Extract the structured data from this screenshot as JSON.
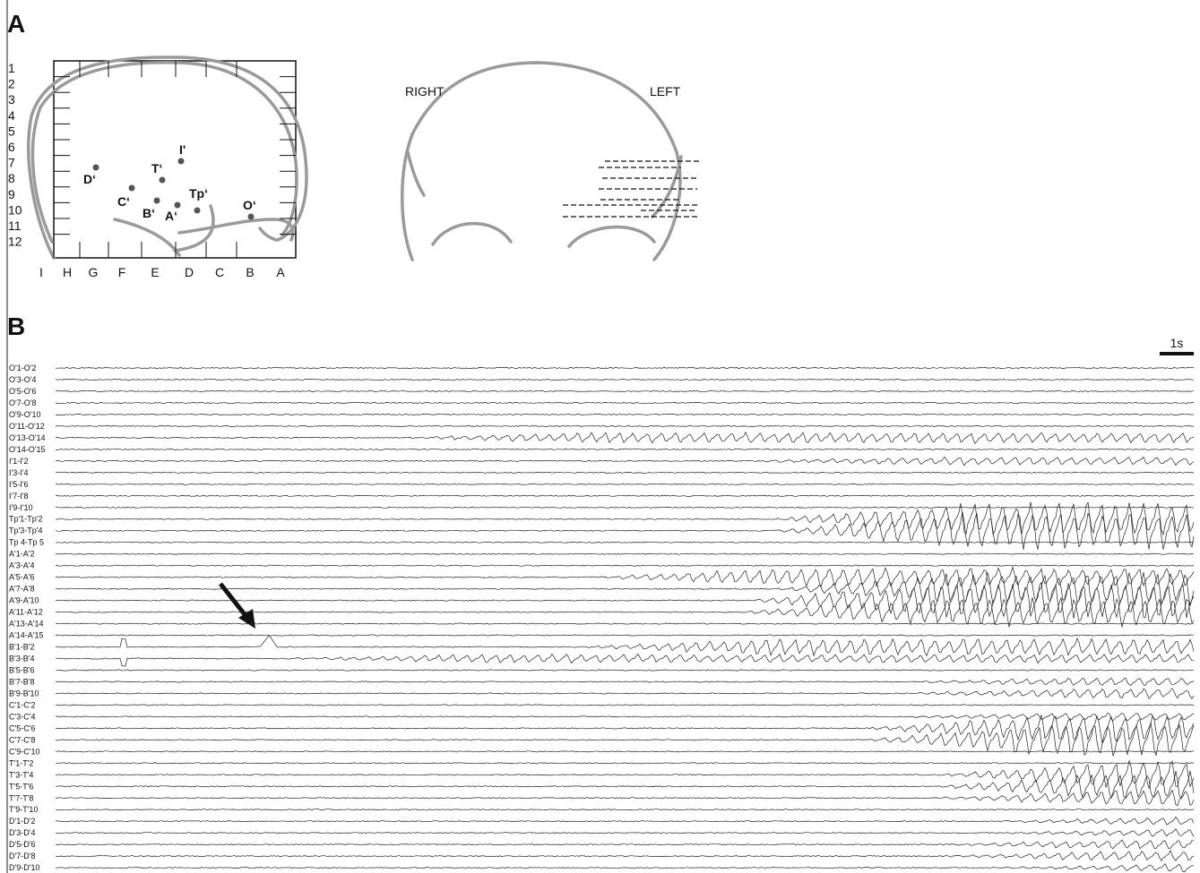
{
  "panel_a": {
    "label": "A",
    "grid_rows": [
      "1",
      "2",
      "3",
      "4",
      "5",
      "6",
      "7",
      "8",
      "9",
      "10",
      "11",
      "12"
    ],
    "grid_cols": [
      "I",
      "H",
      "G",
      "F",
      "E",
      "D",
      "C",
      "B",
      "A"
    ],
    "electrodes": [
      "D‘",
      "C‘",
      "T‘",
      "I'",
      "B‘",
      "A‘",
      "Tp‘",
      "O‘"
    ],
    "coronal": {
      "right": "RIGHT",
      "left": "LEFT"
    }
  },
  "panel_b": {
    "label": "B",
    "scale": "1s",
    "channels": [
      "O'1-O'2",
      "O'3-O'4",
      "O'5-O'6",
      "O'7-O'8",
      "O'9-O'10",
      "O'11-O'12",
      "O'13-O'14",
      "O'14-O'15",
      "I'1-I'2",
      "I'3-I'4",
      "I'5-I'6",
      "I'7-I'8",
      "I'9-I'10",
      "Tp'1-Tp'2",
      "Tp'3-Tp'4",
      "Tp 4-Tp 5",
      "A'1-A'2",
      "A'3-A'4",
      "A'5-A'6",
      "A'7-A'8",
      "A'9-A'10",
      "A'11-A'12",
      "A'13-A'14",
      "A'14-A'15",
      "B'1-B'2",
      "B'3-B'4",
      "B'5-B'6",
      "B'7-B'8",
      "B'9-B'10",
      "C'1-C'2",
      "C'3-C'4",
      "C'5-C'6",
      "C'7-C'8",
      "C'9-C'10",
      "T'1-T'2",
      "T'3-T'4",
      "T'5-T'6",
      "T'7-T'8",
      "T'9-T'10",
      "D'1-D'2",
      "D'3-D'4",
      "D'5-D'6",
      "D'7-D'8",
      "D'9-D'10"
    ]
  }
}
